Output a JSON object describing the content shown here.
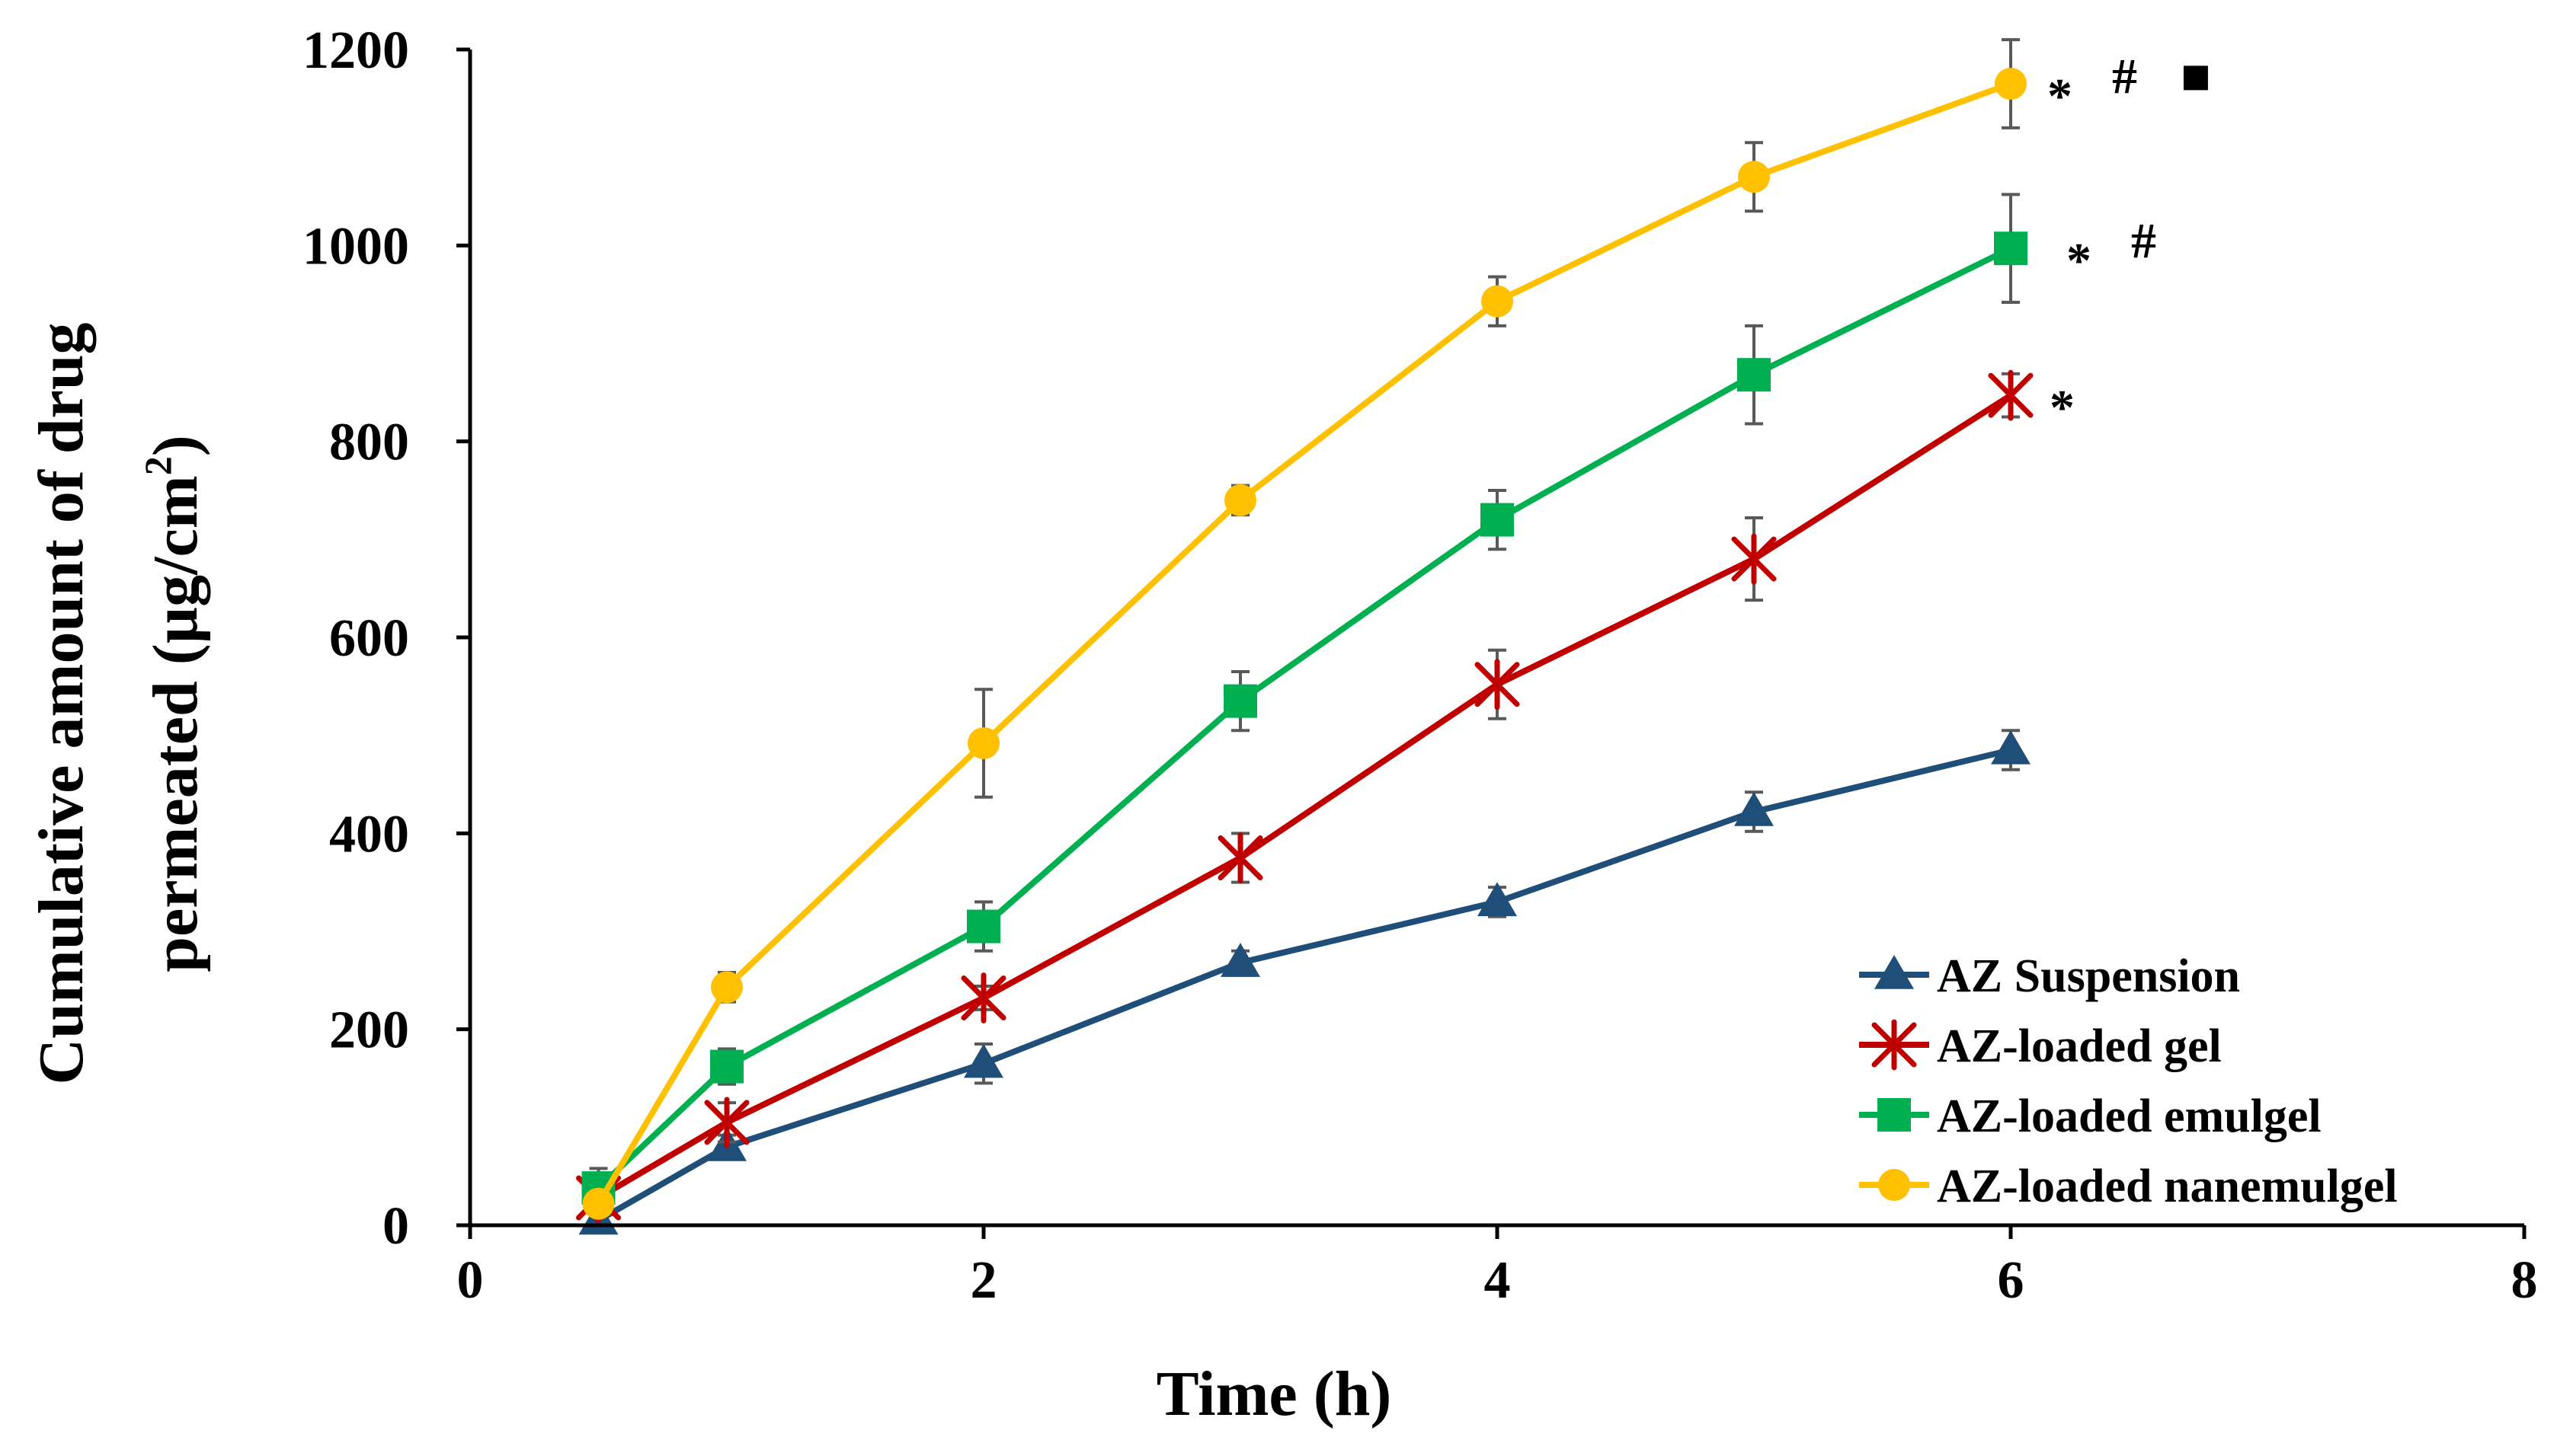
{
  "chart_data": {
    "type": "line",
    "xlabel": "Time (h)",
    "ylabel_line1": "Cumulative amount of drug",
    "ylabel_line2_prefix": "permeated (µg/cm",
    "ylabel_superscript": "2",
    "ylabel_line2_suffix": ")",
    "xlim": [
      0,
      8
    ],
    "ylim": [
      0,
      1200
    ],
    "x_ticks": [
      0,
      2,
      4,
      6,
      8
    ],
    "x_tick_labels": [
      "0",
      "2",
      "4",
      "6",
      "8"
    ],
    "y_ticks": [
      0,
      200,
      400,
      600,
      800,
      1000,
      1200
    ],
    "y_tick_labels": [
      "0",
      "200",
      "400",
      "600",
      "800",
      "1000",
      "1200"
    ],
    "grid": false,
    "legend_position": "bottom-right",
    "x": [
      0.5,
      1,
      2,
      3,
      4,
      5,
      6
    ],
    "series": [
      {
        "name": "AZ Suspension",
        "color": "#1F4E79",
        "marker": "triangle",
        "values": [
          5,
          80,
          165,
          268,
          330,
          422,
          485
        ],
        "errors": [
          5,
          12,
          20,
          12,
          15,
          20,
          20
        ]
      },
      {
        "name": "AZ-loaded gel",
        "color": "#C00000",
        "marker": "asterisk",
        "values": [
          28,
          105,
          232,
          375,
          552,
          680,
          847
        ],
        "errors": [
          8,
          20,
          12,
          25,
          35,
          42,
          22
        ]
      },
      {
        "name": "AZ-loaded emulgel",
        "color": "#00B050",
        "marker": "square",
        "values": [
          38,
          162,
          305,
          535,
          720,
          868,
          997
        ],
        "errors": [
          20,
          18,
          25,
          30,
          30,
          50,
          55
        ]
      },
      {
        "name": "AZ-loaded nanemulgel",
        "color": "#FFC000",
        "marker": "circle",
        "values": [
          22,
          243,
          492,
          740,
          943,
          1070,
          1165
        ],
        "errors": [
          10,
          15,
          55,
          15,
          25,
          35,
          45
        ]
      }
    ],
    "annotations": [
      {
        "text": "*",
        "series": "AZ-loaded gel",
        "x": 6
      },
      {
        "text": "*",
        "series": "AZ-loaded emulgel",
        "x": 6
      },
      {
        "text": "#",
        "series": "AZ-loaded emulgel",
        "x": 6
      },
      {
        "text": "*",
        "series": "AZ-loaded nanemulgel",
        "x": 6
      },
      {
        "text": "#",
        "series": "AZ-loaded nanemulgel",
        "x": 6
      },
      {
        "text": "■",
        "series": "AZ-loaded nanemulgel",
        "x": 6
      }
    ]
  }
}
